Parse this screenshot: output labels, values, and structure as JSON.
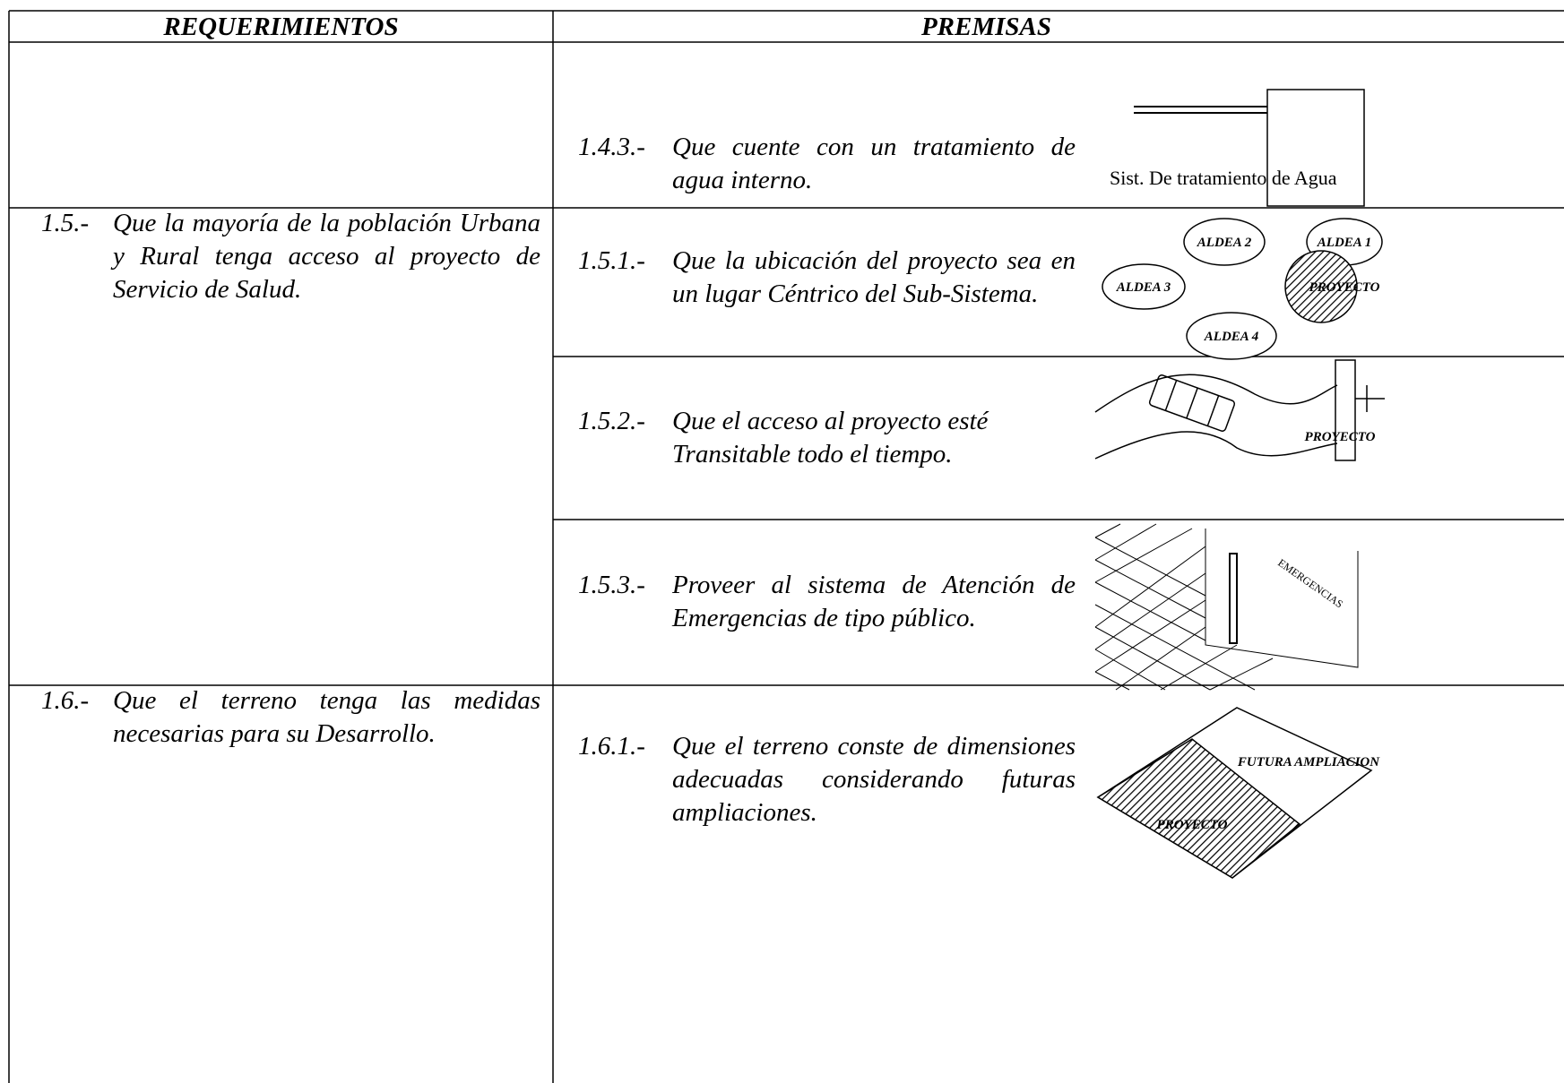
{
  "header": {
    "requerimientos": "REQUERIMIENTOS",
    "premisas": "PREMISAS"
  },
  "rows": [
    {
      "premises": [
        {
          "number": "1.4.3.-",
          "text": "Que cuente con un tratamiento de agua interno.",
          "figure_labels": [
            "Sist. De tratamiento de Agua"
          ]
        }
      ]
    },
    {
      "requirement": {
        "number": "1.5.-",
        "text": "Que la mayoría de la población Urbana y Rural tenga acceso al proyecto de Servicio de Salud."
      },
      "premises": [
        {
          "number": "1.5.1.-",
          "text": "Que la ubicación del proyecto sea en un lugar Céntrico del Sub-Sistema.",
          "figure_labels": [
            "ALDEA 2",
            "ALDEA 1",
            "ALDEA 3",
            "PROYECTO",
            "ALDEA 4"
          ]
        },
        {
          "number": "1.5.2.-",
          "text": "Que el acceso al proyecto esté Transitable todo el tiempo.",
          "figure_labels": [
            "PROYECTO"
          ]
        },
        {
          "number": "1.5.3.-",
          "text": "Proveer al sistema de Atención de Emergencias de tipo público.",
          "figure_labels": [
            "EMERGENCIAS"
          ]
        }
      ]
    },
    {
      "requirement": {
        "number": "1.6.-",
        "text": "Que el terreno tenga las medidas necesarias para su Desarrollo."
      },
      "premises": [
        {
          "number": "1.6.1.-",
          "text": "Que el terreno conste de dimensiones adecuadas considerando futuras ampliaciones.",
          "figure_labels": [
            "FUTURA AMPLIACION",
            "PROYECTO"
          ]
        }
      ]
    }
  ]
}
